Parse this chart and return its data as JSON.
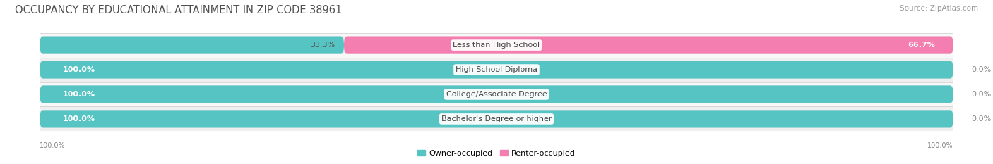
{
  "title": "OCCUPANCY BY EDUCATIONAL ATTAINMENT IN ZIP CODE 38961",
  "source": "Source: ZipAtlas.com",
  "categories": [
    "Less than High School",
    "High School Diploma",
    "College/Associate Degree",
    "Bachelor's Degree or higher"
  ],
  "owner_values": [
    33.3,
    100.0,
    100.0,
    100.0
  ],
  "renter_values": [
    66.7,
    0.0,
    0.0,
    0.0
  ],
  "owner_color": "#57C4C4",
  "renter_color": "#F47EB0",
  "bar_bg_color": "#EBEBEB",
  "row_bg_even": "#F8F8F8",
  "row_bg_odd": "#EFEFEF",
  "title_fontsize": 10.5,
  "source_fontsize": 7.5,
  "value_fontsize": 8,
  "category_fontsize": 8,
  "legend_fontsize": 8,
  "axis_tick_fontsize": 7,
  "background_color": "#FFFFFF",
  "legend_label_owner": "Owner-occupied",
  "legend_label_renter": "Renter-occupied",
  "x_left_label": "100.0%",
  "x_right_label": "100.0%"
}
